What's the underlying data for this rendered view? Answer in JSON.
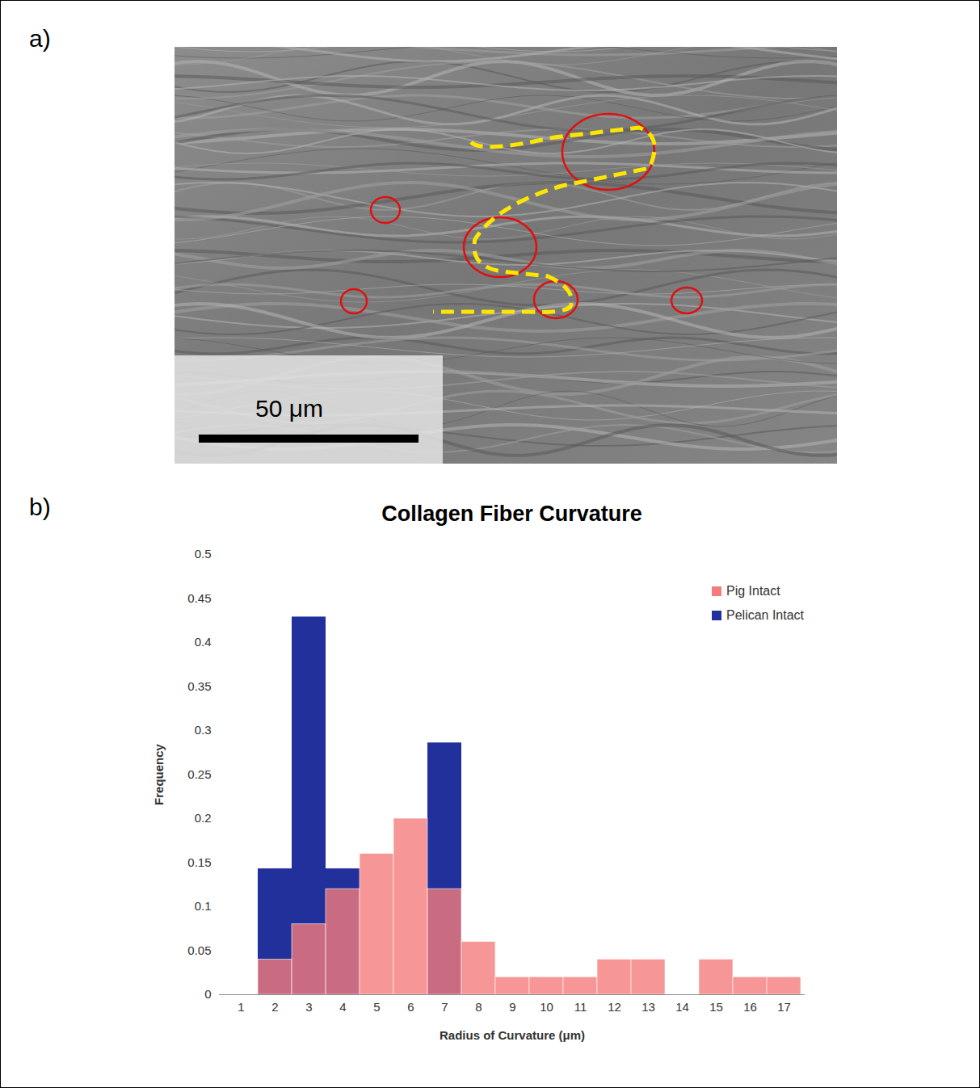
{
  "panels": [
    {
      "label": "a)",
      "scale_bar": "50 μm"
    },
    {
      "label": "b)"
    }
  ],
  "chart_data": {
    "type": "bar",
    "title": "Collagen Fiber Curvature",
    "x_label": "Radius of Curvature (μm)",
    "y_label": "Frequency",
    "categories": [
      1,
      2,
      3,
      4,
      5,
      6,
      7,
      8,
      9,
      10,
      11,
      12,
      13,
      14,
      15,
      16,
      17
    ],
    "series": [
      {
        "name": "Pig Intact",
        "color": "#f47c7c",
        "values": [
          0,
          0.04,
          0.08,
          0.12,
          0.16,
          0.2,
          0.12,
          0.06,
          0.02,
          0.02,
          0.02,
          0.04,
          0.04,
          0,
          0.04,
          0.02,
          0.02
        ]
      },
      {
        "name": "Pelican Intact",
        "color": "#22309c",
        "values": [
          0,
          0.143,
          0.429,
          0.143,
          0,
          0,
          0.286,
          0,
          0,
          0,
          0,
          0,
          0,
          0,
          0,
          0,
          0
        ]
      }
    ],
    "ylim": [
      0,
      0.5
    ],
    "yticks": [
      0,
      0.05,
      0.1,
      0.15,
      0.2,
      0.25,
      0.3,
      0.35,
      0.4,
      0.45,
      0.5
    ],
    "grid": false,
    "legend": "top-right"
  }
}
